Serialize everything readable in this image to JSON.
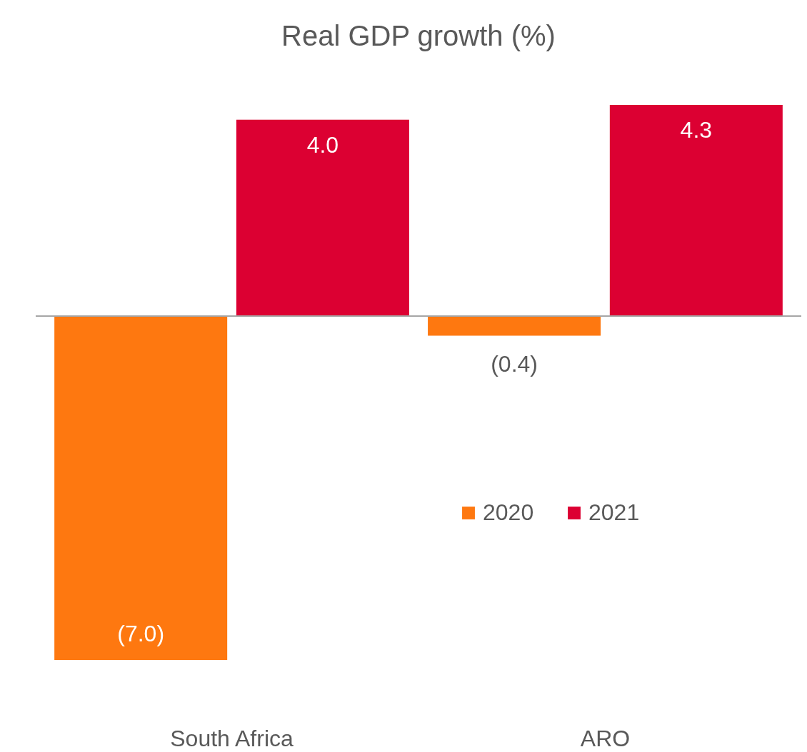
{
  "chart_data": {
    "type": "bar",
    "title": "Real GDP growth (%)",
    "categories": [
      "South Africa",
      "ARO"
    ],
    "series": [
      {
        "name": "2020",
        "color": "#fe7810",
        "values": [
          -7.0,
          -0.4
        ],
        "value_labels": [
          "(7.0)",
          "(0.4)"
        ]
      },
      {
        "name": "2021",
        "color": "#dc0032",
        "values": [
          4.0,
          4.3
        ],
        "value_labels": [
          "4.0",
          "4.3"
        ]
      }
    ],
    "legend": "right",
    "grid": false
  }
}
